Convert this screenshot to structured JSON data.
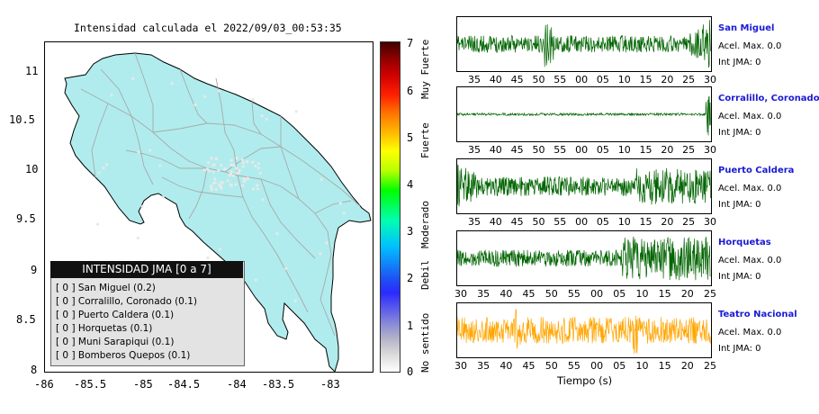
{
  "map": {
    "title": "Intensidad calculada el 2022/09/03_00:53:35",
    "x_ticks": [
      "-86",
      "-85.5",
      "-85",
      "-84.5",
      "-84",
      "-83.5",
      "-83"
    ],
    "y_ticks": [
      "11",
      "10.5",
      "10",
      "9.5",
      "9",
      "8.5",
      "8"
    ],
    "land_color": "#b0eced",
    "road_color": "#a9a9a9"
  },
  "legend": {
    "title": "INTENSIDAD JMA [0 a 7]",
    "items": [
      "[ 0 ]  San Miguel (0.2)",
      "[ 0 ]  Corralillo, Coronado (0.1)",
      "[ 0 ]  Puerto Caldera (0.1)",
      "[ 0 ]  Horquetas (0.1)",
      "[ 0 ]  Muni Sarapiqui (0.1)",
      "[ 0 ]  Bomberos Quepos (0.1)"
    ]
  },
  "colorbar": {
    "numbers": [
      "7",
      "6",
      "5",
      "4",
      "3",
      "2",
      "1",
      "0"
    ],
    "labels": [
      "Muy Fuerte",
      "Fuerte",
      "Moderado",
      "Debil",
      "No sentido"
    ]
  },
  "traces": [
    {
      "name": "San Miguel",
      "accel": "Acel. Max. 0.0",
      "jma": "Int JMA: 0",
      "color": "#006400",
      "ticks": [
        "35",
        "40",
        "45",
        "50",
        "55",
        "00",
        "05",
        "10",
        "15",
        "20",
        "25",
        "30"
      ]
    },
    {
      "name": "Corralillo, Coronado",
      "accel": "Acel. Max. 0.0",
      "jma": "Int JMA: 0",
      "color": "#006400",
      "ticks": [
        "35",
        "40",
        "45",
        "50",
        "55",
        "00",
        "05",
        "10",
        "15",
        "20",
        "25",
        "30"
      ]
    },
    {
      "name": "Puerto Caldera",
      "accel": "Acel. Max. 0.0",
      "jma": "Int JMA: 0",
      "color": "#006400",
      "ticks": [
        "35",
        "40",
        "45",
        "50",
        "55",
        "00",
        "05",
        "10",
        "15",
        "20",
        "25",
        "30"
      ]
    },
    {
      "name": "Horquetas",
      "accel": "Acel. Max. 0.0",
      "jma": "Int JMA: 0",
      "color": "#006400",
      "ticks": [
        "30",
        "35",
        "40",
        "45",
        "50",
        "55",
        "00",
        "05",
        "10",
        "15",
        "20",
        "25"
      ]
    },
    {
      "name": "Teatro Nacional",
      "accel": "Acel. Max. 0.0",
      "jma": "Int JMA: 0",
      "color": "#ffa500",
      "ticks": [
        "30",
        "35",
        "40",
        "45",
        "50",
        "55",
        "00",
        "05",
        "10",
        "15",
        "20",
        "25"
      ]
    }
  ],
  "traces_xlabel": "Tiempo (s)"
}
